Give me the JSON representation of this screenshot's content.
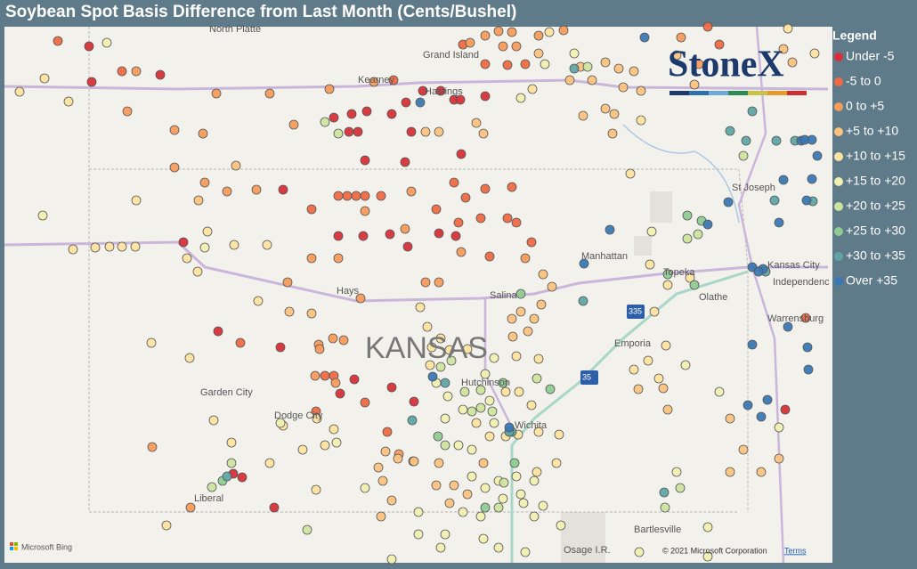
{
  "title": "Soybean Spot Basis Difference from Last Month (Cents/Bushel)",
  "legend": {
    "title": "Legend",
    "items": [
      {
        "label": "Under -5",
        "color": "#d7303a"
      },
      {
        "label": "-5 to 0",
        "color": "#ee6a45"
      },
      {
        "label": "0 to +5",
        "color": "#f59c5c"
      },
      {
        "label": "+5 to +10",
        "color": "#fbc27f"
      },
      {
        "label": "+10 to +15",
        "color": "#fde3a0"
      },
      {
        "label": "+15 to +20",
        "color": "#f1f0b2"
      },
      {
        "label": "+20 to +25",
        "color": "#cde3a0"
      },
      {
        "label": "+25 to +30",
        "color": "#8fcb92"
      },
      {
        "label": "+30 to +35",
        "color": "#5fa5a6"
      },
      {
        "label": "Over +35",
        "color": "#3a78b4"
      }
    ]
  },
  "logo": "StoneX",
  "map_labels": [
    "North Platte",
    "Grand Island",
    "Kearney",
    "Hastings",
    "St Joseph",
    "Manhattan",
    "Topeka",
    "Kansas City",
    "Independenc",
    "Olathe",
    "Hays",
    "Salina",
    "KANSAS",
    "Emporia",
    "Warrensburg",
    "Garden City",
    "Dodge City",
    "Hutchinson",
    "Wichita",
    "Liberal",
    "Bartlesville",
    "Osage I.R.",
    "335",
    "35"
  ],
  "footer": {
    "provider": "Microsoft Bing",
    "copyright": "© 2021 Microsoft Corporation",
    "terms": "Terms"
  }
}
